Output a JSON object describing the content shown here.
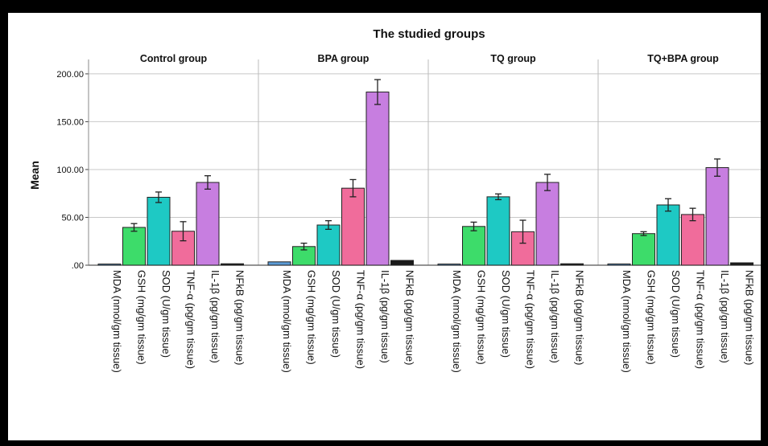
{
  "chart_data": {
    "type": "bar",
    "title": "The studied groups",
    "ylabel": "Mean",
    "ylim": [
      0,
      210
    ],
    "yticks": [
      0,
      50,
      100,
      150,
      200
    ],
    "ytick_labels": [
      ".00",
      "50.00",
      "100.00",
      "150.00",
      "200.00"
    ],
    "grid": true,
    "categories": [
      "MDA (nmol/gm tissue)",
      "GSH (mg/gm tissue)",
      "SOD (U/gm tissue)",
      "TNF-α (pg/gm tissue)",
      "IL-1β (pg/gm tissue)",
      "NFkB (pg/gm tissue)"
    ],
    "colors": [
      "#5b9bd5",
      "#3ddc6a",
      "#1ec9c4",
      "#f06c9b",
      "#c77ee0",
      "#1a1a1a"
    ],
    "panels": [
      {
        "name": "Control group",
        "values": [
          1.2,
          39.5,
          71,
          35.5,
          86.5,
          1.5
        ],
        "errors": [
          0.3,
          4,
          5.5,
          10,
          7,
          0.3
        ]
      },
      {
        "name": "BPA group",
        "values": [
          3.5,
          19.5,
          42,
          80.5,
          181,
          5
        ],
        "errors": [
          0.5,
          3.5,
          4.5,
          9,
          13,
          0.5
        ]
      },
      {
        "name": "TQ group",
        "values": [
          1.2,
          40.5,
          71.5,
          35,
          86.5,
          1.5
        ],
        "errors": [
          0.3,
          4.5,
          3,
          12,
          8.5,
          0.3
        ]
      },
      {
        "name": "TQ+BPA group",
        "values": [
          1.3,
          33,
          63,
          53,
          102,
          2.5
        ],
        "errors": [
          0.3,
          2,
          6.5,
          6.5,
          9,
          0.3
        ]
      }
    ]
  }
}
